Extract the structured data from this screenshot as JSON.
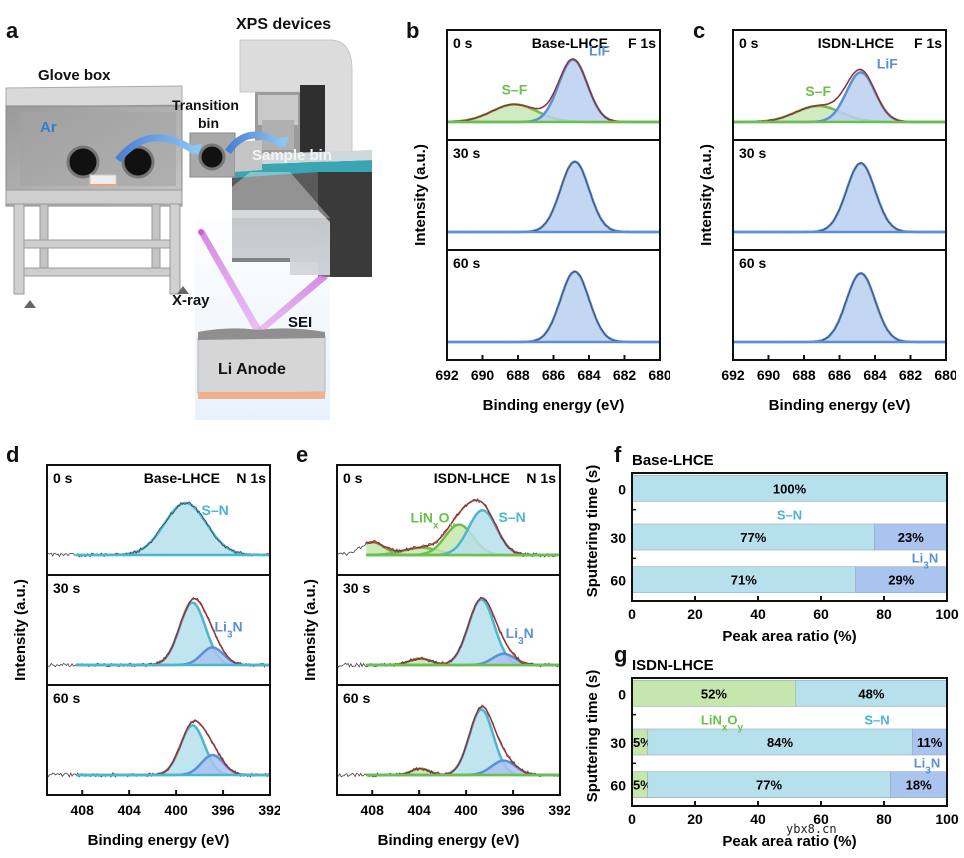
{
  "panel_labels": {
    "a": "a",
    "b": "b",
    "c": "c",
    "d": "d",
    "e": "e",
    "f": "f",
    "g": "g"
  },
  "schematic": {
    "glove_box": "Glove box",
    "ar": "Ar",
    "transition_bin_1": "Transition",
    "transition_bin_2": "bin",
    "xps_devices": "XPS devices",
    "sample_bin": "Sample bin",
    "xray": "X-ray",
    "sei": "SEI",
    "li_anode": "Li Anode"
  },
  "colors": {
    "lif": "#5b8fd9",
    "lif_fill": "#b8d0f0",
    "sf": "#6cc04a",
    "sf_fill": "#c8e8b4",
    "sn": "#4ab6d0",
    "sn_fill": "#b6e0ec",
    "li3n": "#5b8fd9",
    "li3n_fill": "#a9c4ee",
    "linxoy": "#6cc04a",
    "linxoy_fill": "#c5e6ac",
    "envelope": "#e03030",
    "raw": "#444444"
  },
  "chart_data": [
    {
      "id": "b",
      "type": "line",
      "title": "Base-LHCE",
      "core_level": "F 1s",
      "xlabel": "Binding energy (eV)",
      "ylabel": "Intensity (a.u.)",
      "xlim": [
        692,
        680
      ],
      "xticks": [
        "692",
        "690",
        "688",
        "686",
        "684",
        "682",
        "680"
      ],
      "panels": [
        {
          "time": "0 s",
          "peaks": [
            {
              "name": "S–F",
              "center": 688.2,
              "height": 0.22,
              "fwhm": 3.0,
              "label": "S–F"
            },
            {
              "name": "LiF",
              "center": 684.9,
              "height": 0.78,
              "fwhm": 1.9,
              "label": "LiF"
            }
          ]
        },
        {
          "time": "30 s",
          "peaks": [
            {
              "name": "LiF",
              "center": 684.8,
              "height": 0.88,
              "fwhm": 1.9
            }
          ]
        },
        {
          "time": "60 s",
          "peaks": [
            {
              "name": "LiF",
              "center": 684.8,
              "height": 0.88,
              "fwhm": 1.9
            }
          ]
        }
      ]
    },
    {
      "id": "c",
      "type": "line",
      "title": "ISDN-LHCE",
      "core_level": "F 1s",
      "xlabel": "Binding energy (eV)",
      "ylabel": "Intensity (a.u.)",
      "xlim": [
        692,
        680
      ],
      "xticks": [
        "692",
        "690",
        "688",
        "686",
        "684",
        "682",
        "680"
      ],
      "panels": [
        {
          "time": "0 s",
          "peaks": [
            {
              "name": "S–F",
              "center": 687.2,
              "height": 0.2,
              "fwhm": 3.0,
              "label": "S–F"
            },
            {
              "name": "LiF",
              "center": 684.8,
              "height": 0.62,
              "fwhm": 1.9,
              "label": "LiF"
            }
          ]
        },
        {
          "time": "30 s",
          "peaks": [
            {
              "name": "LiF",
              "center": 684.8,
              "height": 0.86,
              "fwhm": 1.9
            }
          ]
        },
        {
          "time": "60 s",
          "peaks": [
            {
              "name": "LiF",
              "center": 684.8,
              "height": 0.86,
              "fwhm": 1.9
            }
          ]
        }
      ]
    },
    {
      "id": "d",
      "type": "line",
      "title": "Base-LHCE",
      "core_level": "N 1s",
      "xlabel": "Binding energy (eV)",
      "ylabel": "Intensity (a.u.)",
      "xlim": [
        411,
        392
      ],
      "xticks": [
        "408",
        "404",
        "400",
        "396",
        "392"
      ],
      "panels": [
        {
          "time": "0 s",
          "peaks": [
            {
              "name": "S–N",
              "center": 399.2,
              "height": 0.65,
              "fwhm": 4.2,
              "label": "S–N"
            }
          ]
        },
        {
          "time": "30 s",
          "peaks": [
            {
              "name": "S–N",
              "center": 398.6,
              "height": 0.78,
              "fwhm": 2.6
            },
            {
              "name": "Li3N",
              "center": 396.9,
              "height": 0.22,
              "fwhm": 2.2,
              "label": "Li3N"
            }
          ]
        },
        {
          "time": "60 s",
          "peaks": [
            {
              "name": "S–N",
              "center": 398.6,
              "height": 0.62,
              "fwhm": 2.4
            },
            {
              "name": "Li3N",
              "center": 396.9,
              "height": 0.25,
              "fwhm": 2.2
            }
          ]
        }
      ]
    },
    {
      "id": "e",
      "type": "line",
      "title": "ISDN-LHCE",
      "core_level": "N 1s",
      "xlabel": "Binding energy (eV)",
      "ylabel": "Intensity (a.u.)",
      "xlim": [
        411,
        392
      ],
      "xticks": [
        "408",
        "404",
        "400",
        "396",
        "392"
      ],
      "panels": [
        {
          "time": "0 s",
          "peaks": [
            {
              "name": "LiNxOy",
              "center": 408.0,
              "height": 0.16,
              "fwhm": 2.4
            },
            {
              "name": "LiNxOy",
              "center": 403.8,
              "height": 0.09,
              "fwhm": 3.6
            },
            {
              "name": "LiNxOy",
              "center": 400.6,
              "height": 0.38,
              "fwhm": 2.8,
              "label": "LiNxOy"
            },
            {
              "name": "S–N",
              "center": 398.6,
              "height": 0.56,
              "fwhm": 2.8,
              "label": "S–N"
            }
          ]
        },
        {
          "time": "30 s",
          "peaks": [
            {
              "name": "LiNxOy",
              "center": 403.9,
              "height": 0.08,
              "fwhm": 2.2
            },
            {
              "name": "S–N",
              "center": 398.7,
              "height": 0.82,
              "fwhm": 2.6
            },
            {
              "name": "Li3N",
              "center": 396.8,
              "height": 0.14,
              "fwhm": 2.2,
              "label": "Li3N"
            }
          ]
        },
        {
          "time": "60 s",
          "peaks": [
            {
              "name": "LiNxOy",
              "center": 403.9,
              "height": 0.08,
              "fwhm": 1.8
            },
            {
              "name": "S–N",
              "center": 398.7,
              "height": 0.82,
              "fwhm": 2.4
            },
            {
              "name": "Li3N",
              "center": 396.8,
              "height": 0.18,
              "fwhm": 2.4
            }
          ]
        }
      ]
    },
    {
      "id": "f",
      "type": "bar",
      "orientation": "horizontal-stacked",
      "title": "Base-LHCE",
      "xlabel": "Peak area ratio (%)",
      "ylabel": "Sputtering time (s)",
      "xlim": [
        0,
        100
      ],
      "xticks": [
        "0",
        "20",
        "40",
        "60",
        "80",
        "100"
      ],
      "categories": [
        "0",
        "30",
        "60"
      ],
      "series": [
        {
          "name": "S–N",
          "values": [
            100,
            77,
            71
          ],
          "labels": [
            "100%",
            "77%",
            "71%"
          ]
        },
        {
          "name": "Li3N",
          "values": [
            0,
            23,
            29
          ],
          "labels": [
            "",
            "23%",
            "29%"
          ]
        }
      ],
      "legend_labels": {
        "S–N": "S–N",
        "Li3N": "Li3N"
      }
    },
    {
      "id": "g",
      "type": "bar",
      "orientation": "horizontal-stacked",
      "title": "ISDN-LHCE",
      "xlabel": "Peak area ratio (%)",
      "ylabel": "Sputtering time (s)",
      "xlim": [
        0,
        100
      ],
      "xticks": [
        "0",
        "20",
        "40",
        "60",
        "80",
        "100"
      ],
      "categories": [
        "0",
        "30",
        "60"
      ],
      "series": [
        {
          "name": "LiNxOy",
          "values": [
            52,
            5,
            5
          ],
          "labels": [
            "52%",
            "5%",
            "5%"
          ]
        },
        {
          "name": "S–N",
          "values": [
            48,
            84,
            77
          ],
          "labels": [
            "48%",
            "84%",
            "77%"
          ]
        },
        {
          "name": "Li3N",
          "values": [
            0,
            11,
            18
          ],
          "labels": [
            "",
            "11%",
            "18%"
          ]
        }
      ],
      "legend_labels": {
        "LiNxOy": "LiNxOy",
        "S–N": "S–N",
        "Li3N": "Li3N"
      }
    }
  ],
  "watermark": "ybx8.cn"
}
